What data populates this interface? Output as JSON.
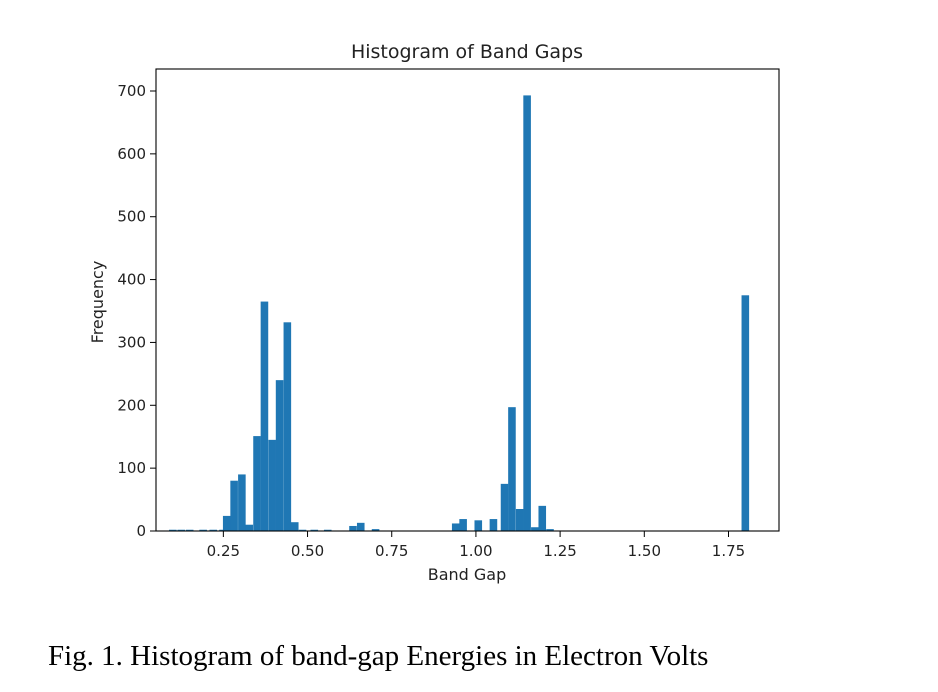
{
  "caption": "Fig. 1.  Histogram of band-gap Energies in Electron Volts",
  "chart_data": {
    "type": "bar",
    "title": "Histogram of Band Gaps",
    "xlabel": "Band Gap",
    "ylabel": "Frequency",
    "xlim": [
      0.05,
      1.9
    ],
    "ylim": [
      0,
      735
    ],
    "bin_width": 0.0225,
    "color": "#1f77b4",
    "x_ticks": [
      0.25,
      0.5,
      0.75,
      1.0,
      1.25,
      1.5,
      1.75
    ],
    "x_tick_labels": [
      "0.25",
      "0.50",
      "0.75",
      "1.00",
      "1.25",
      "1.50",
      "1.75"
    ],
    "y_ticks": [
      0,
      100,
      200,
      300,
      400,
      500,
      600,
      700
    ],
    "y_tick_labels": [
      "0",
      "100",
      "200",
      "300",
      "400",
      "500",
      "600",
      "700"
    ],
    "bins": [
      {
        "x": 0.1,
        "value": 2
      },
      {
        "x": 0.125,
        "value": 2
      },
      {
        "x": 0.15,
        "value": 2
      },
      {
        "x": 0.19,
        "value": 2
      },
      {
        "x": 0.22,
        "value": 2
      },
      {
        "x": 0.249,
        "value": 2
      },
      {
        "x": 0.26,
        "value": 24
      },
      {
        "x": 0.282,
        "value": 80
      },
      {
        "x": 0.305,
        "value": 90
      },
      {
        "x": 0.327,
        "value": 10
      },
      {
        "x": 0.35,
        "value": 151
      },
      {
        "x": 0.372,
        "value": 365
      },
      {
        "x": 0.395,
        "value": 145
      },
      {
        "x": 0.417,
        "value": 240
      },
      {
        "x": 0.44,
        "value": 332
      },
      {
        "x": 0.462,
        "value": 14
      },
      {
        "x": 0.485,
        "value": 2
      },
      {
        "x": 0.52,
        "value": 2
      },
      {
        "x": 0.56,
        "value": 2
      },
      {
        "x": 0.635,
        "value": 8
      },
      {
        "x": 0.658,
        "value": 13
      },
      {
        "x": 0.702,
        "value": 3
      },
      {
        "x": 0.94,
        "value": 12
      },
      {
        "x": 0.962,
        "value": 19
      },
      {
        "x": 1.007,
        "value": 17
      },
      {
        "x": 1.052,
        "value": 19
      },
      {
        "x": 1.085,
        "value": 75
      },
      {
        "x": 1.107,
        "value": 197
      },
      {
        "x": 1.13,
        "value": 35
      },
      {
        "x": 1.152,
        "value": 693
      },
      {
        "x": 1.175,
        "value": 6
      },
      {
        "x": 1.197,
        "value": 40
      },
      {
        "x": 1.22,
        "value": 3
      },
      {
        "x": 1.8,
        "value": 375
      }
    ]
  }
}
